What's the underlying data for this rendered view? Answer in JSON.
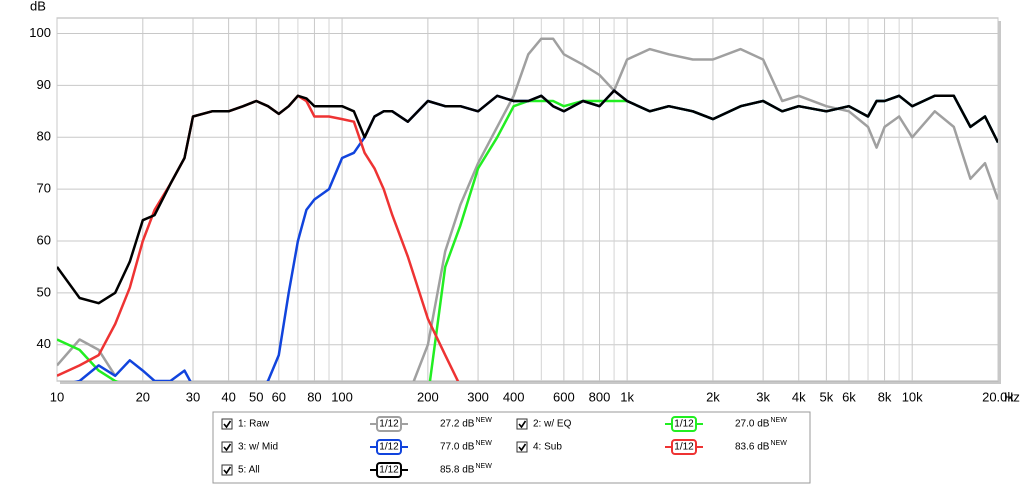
{
  "chart_data": {
    "type": "line",
    "y_label": "dB",
    "x_label": "Hz",
    "log_x": true,
    "grid": true,
    "xlim": [
      10,
      20000
    ],
    "ylim": [
      33,
      103
    ],
    "yticks": [
      40,
      50,
      60,
      70,
      80,
      90,
      100
    ],
    "xticks": [
      10,
      20,
      30,
      40,
      50,
      60,
      80,
      100,
      200,
      300,
      400,
      600,
      800,
      {
        "value": 1000,
        "label": "1k"
      },
      {
        "value": 2000,
        "label": "2k"
      },
      {
        "value": 3000,
        "label": "3k"
      },
      {
        "value": 4000,
        "label": "4k"
      },
      {
        "value": 5000,
        "label": "5k"
      },
      {
        "value": 6000,
        "label": "6k"
      },
      {
        "value": 8000,
        "label": "8k"
      },
      {
        "value": 10000,
        "label": "10k"
      },
      {
        "value": 20000,
        "label": "20.0k"
      }
    ],
    "x_minor_ticks": [
      70,
      90,
      500,
      700,
      900,
      7000,
      9000
    ],
    "x": [
      10,
      12,
      14,
      16,
      18,
      20,
      22,
      25,
      28,
      30,
      35,
      40,
      45,
      50,
      55,
      60,
      65,
      70,
      75,
      80,
      90,
      100,
      110,
      120,
      130,
      140,
      150,
      170,
      200,
      230,
      260,
      300,
      350,
      400,
      450,
      500,
      550,
      600,
      700,
      800,
      900,
      1000,
      1200,
      1400,
      1700,
      2000,
      2500,
      3000,
      3500,
      4000,
      5000,
      6000,
      7000,
      7500,
      8000,
      9000,
      10000,
      12000,
      14000,
      16000,
      18000,
      20000
    ],
    "smoothing_label": "1/12",
    "badge": "NEW",
    "series": [
      {
        "name": "1: Raw",
        "color": "#a0a0a0",
        "level": "27.2 dB",
        "values": [
          36,
          41,
          39,
          34,
          null,
          null,
          null,
          null,
          null,
          null,
          null,
          null,
          null,
          null,
          null,
          null,
          null,
          null,
          null,
          null,
          null,
          null,
          null,
          null,
          null,
          null,
          null,
          30,
          40,
          58,
          67,
          75,
          82,
          88,
          96,
          99,
          99,
          96,
          94,
          92,
          89,
          95,
          97,
          96,
          95,
          95,
          97,
          95,
          87,
          88,
          86,
          85,
          82,
          78,
          82,
          84,
          80,
          85,
          82,
          72,
          75,
          68
        ]
      },
      {
        "name": "2: w/ EQ",
        "color": "#22ee22",
        "level": "27.0 dB",
        "values": [
          41,
          39,
          35,
          33,
          32,
          null,
          null,
          null,
          null,
          null,
          null,
          null,
          null,
          null,
          null,
          null,
          null,
          null,
          null,
          null,
          null,
          null,
          null,
          null,
          null,
          null,
          null,
          null,
          30,
          55,
          63,
          74,
          80,
          86,
          87,
          87,
          87,
          86,
          87,
          87,
          87,
          87,
          85,
          86,
          85,
          83.5,
          86,
          87,
          85,
          86,
          85,
          86,
          84,
          87,
          87,
          88,
          86,
          88,
          88,
          82,
          84,
          79
        ]
      },
      {
        "name": "3: w/ Mid",
        "color": "#1144dd",
        "level": "77.0 dB",
        "values": [
          32,
          33,
          36,
          34,
          37,
          35,
          33,
          33,
          35,
          32,
          30,
          30,
          30,
          31,
          33,
          38,
          50,
          60,
          66,
          68,
          70,
          76,
          77,
          80,
          84,
          85,
          85,
          83,
          87,
          86,
          86,
          85,
          88,
          87,
          87,
          88,
          86,
          85,
          87,
          86,
          89,
          87,
          85,
          86,
          85,
          83.5,
          86,
          87,
          85,
          86,
          85,
          86,
          84,
          87,
          87,
          88,
          86,
          88,
          88,
          82,
          84,
          79
        ]
      },
      {
        "name": "4: Sub",
        "color": "#ee3333",
        "level": "83.6 dB",
        "values": [
          34,
          36,
          38,
          44,
          51,
          60,
          66,
          71,
          76,
          84,
          85,
          85,
          86,
          87,
          86,
          84.5,
          86,
          88,
          87,
          84,
          84,
          83.5,
          83,
          77,
          74,
          70,
          65,
          57,
          45,
          38,
          32,
          null,
          null,
          null,
          null,
          null,
          null,
          null,
          null,
          null,
          null,
          null,
          null,
          null,
          null,
          null,
          null,
          null,
          null,
          null,
          null,
          null,
          null,
          null,
          null,
          null,
          null,
          null,
          null,
          null,
          null,
          null
        ]
      },
      {
        "name": "5: All",
        "color": "#000000",
        "level": "85.8 dB",
        "values": [
          55,
          49,
          48,
          50,
          56,
          64,
          65,
          71,
          76,
          84,
          85,
          85,
          86,
          87,
          86,
          84.5,
          86,
          88,
          87.5,
          86,
          86,
          86,
          85,
          80,
          84,
          85,
          85,
          83,
          87,
          86,
          86,
          85,
          88,
          87,
          87,
          88,
          86,
          85,
          87,
          86,
          89,
          87,
          85,
          86,
          85,
          83.5,
          86,
          87,
          85,
          86,
          85,
          86,
          84,
          87,
          87,
          88,
          86,
          88,
          88,
          82,
          84,
          79
        ]
      }
    ]
  }
}
